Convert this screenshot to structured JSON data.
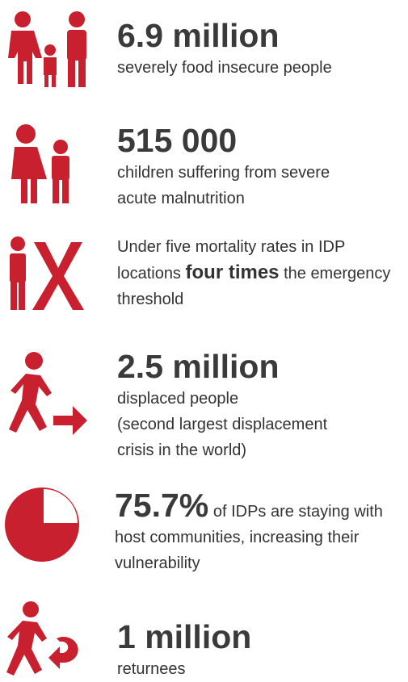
{
  "items": [
    {
      "headline": "6.9 million",
      "lines": [
        "severely food insecure people"
      ]
    },
    {
      "headline": "515 000",
      "lines": [
        "children suffering from severe",
        "acute malnutrition"
      ]
    },
    {
      "text_before": "Under five mortality rates in IDP locations",
      "emphasis": "four times",
      "text_after": "the emergency threshold"
    },
    {
      "headline": "2.5 million",
      "lines": [
        "displaced people",
        "(second largest displacement",
        "crisis in the world)"
      ]
    },
    {
      "headline": "75.7%",
      "text": "of IDPs are staying with host communities, increasing their vulnerability"
    },
    {
      "headline": "1 million",
      "lines": [
        "returnees"
      ]
    }
  ]
}
